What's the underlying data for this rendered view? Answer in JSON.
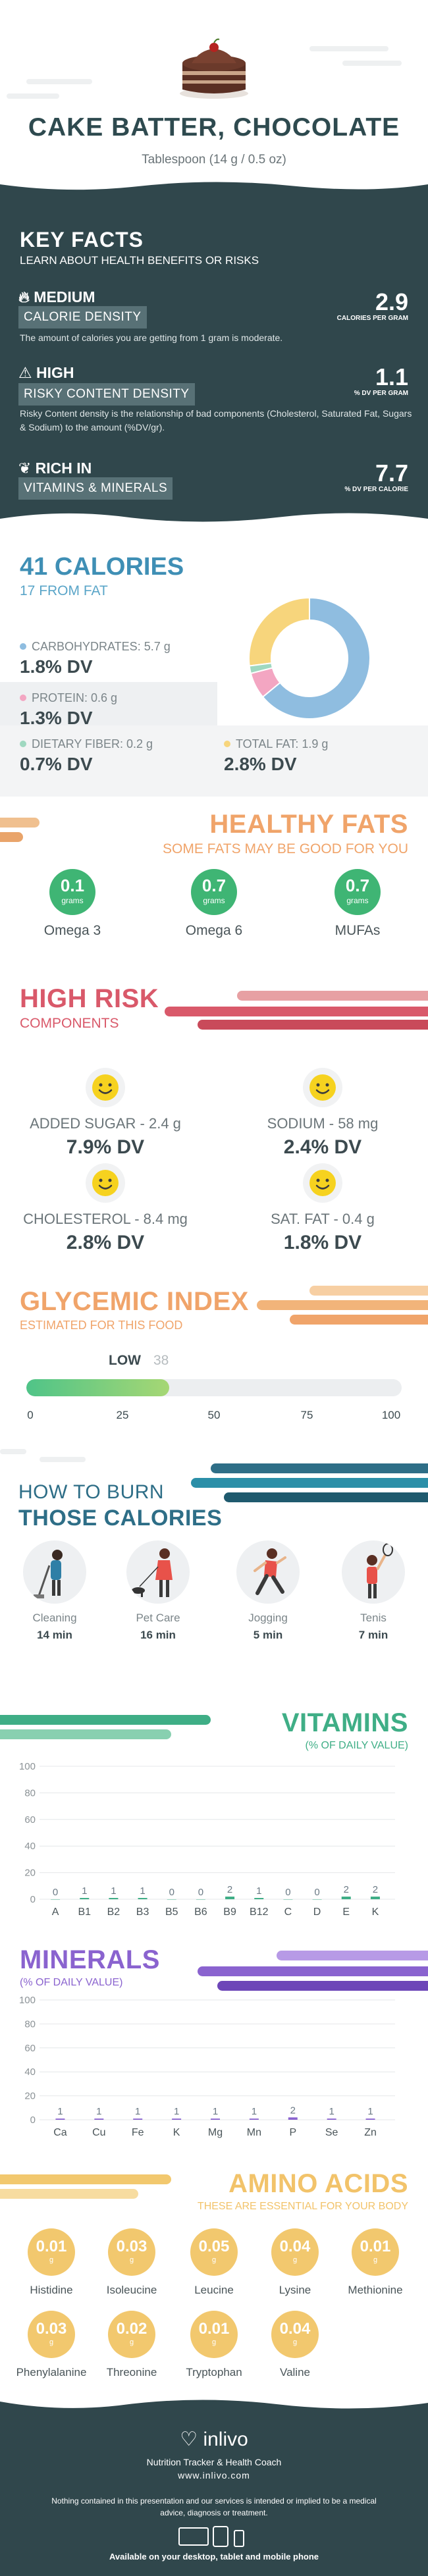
{
  "header": {
    "title": "CAKE BATTER, CHOCOLATE",
    "serving": "Tablespoon (14 g / 0.5 oz)"
  },
  "key_facts": {
    "heading": "KEY FACTS",
    "subheading": "LEARN ABOUT HEALTH BENEFITS OR RISKS",
    "items": [
      {
        "badge": "MEDIUM",
        "label": "CALORIE DENSITY",
        "value": "2.9",
        "unit": "CALORIES PER GRAM",
        "desc": "The amount of calories you are getting from 1 gram is moderate.",
        "icon": "flame-icon"
      },
      {
        "badge": "HIGH",
        "label": "RISKY CONTENT DENSITY",
        "value": "1.1",
        "unit": "% DV PER GRAM",
        "desc": "Risky Content density is the relationship of bad components (Cholesterol, Saturated Fat, Sugars & Sodium) to the amount (%DV/gr).",
        "icon": "warning-icon"
      },
      {
        "badge": "RICH  IN",
        "label": "VITAMINS & MINERALS",
        "value": "7.7",
        "unit": "% DV PER CALORIE",
        "desc": "",
        "icon": "leaf-icon"
      }
    ]
  },
  "calories": {
    "title": "41 CALORIES",
    "from_fat": "17 FROM FAT",
    "nutrients": [
      {
        "label": "CARBOHYDRATES: 5.7 g",
        "dv": "1.8% DV",
        "color": "#8fbde0"
      },
      {
        "label": "PROTEIN: 0.6 g",
        "dv": "1.3% DV",
        "color": "#f3a6c2"
      },
      {
        "label": "DIETARY FIBER: 0.2 g",
        "dv": "0.7% DV",
        "color": "#9fd8c0"
      },
      {
        "label": "TOTAL FAT: 1.9 g",
        "dv": "2.8% DV",
        "color": "#f7d57c"
      }
    ],
    "chart_data": {
      "type": "pie",
      "categories": [
        "Carbohydrates",
        "Protein",
        "Dietary Fiber",
        "Total Fat"
      ],
      "values": [
        64,
        7,
        2,
        27
      ],
      "colors": [
        "#8fbde0",
        "#f3a6c2",
        "#9fd8c0",
        "#f7d57c"
      ]
    }
  },
  "healthy_fats": {
    "title": "HEALTHY FATS",
    "subtitle": "SOME FATS MAY BE GOOD FOR YOU",
    "items": [
      {
        "value": "0.1",
        "unit": "grams",
        "name": "Omega 3"
      },
      {
        "value": "0.7",
        "unit": "grams",
        "name": "Omega 6"
      },
      {
        "value": "0.7",
        "unit": "grams",
        "name": "MUFAs"
      }
    ]
  },
  "high_risk": {
    "title": "HIGH RISK",
    "subtitle": "COMPONENTS",
    "items": [
      {
        "label": "ADDED SUGAR - 2.4 g",
        "dv": "7.9% DV"
      },
      {
        "label": "SODIUM - 58 mg",
        "dv": "2.4% DV"
      },
      {
        "label": "CHOLESTEROL - 8.4 mg",
        "dv": "2.8% DV"
      },
      {
        "label": "SAT. FAT - 0.4 g",
        "dv": "1.8% DV"
      }
    ]
  },
  "glycemic": {
    "title": "GLYCEMIC INDEX",
    "subtitle": "ESTIMATED FOR THIS FOOD",
    "level": "LOW",
    "value": "38",
    "fraction": 0.38,
    "ticks": [
      "0",
      "25",
      "50",
      "75",
      "100"
    ]
  },
  "burn": {
    "title_line1": "HOW TO BURN",
    "title_line2": "THOSE CALORIES",
    "activities": [
      {
        "name": "Cleaning",
        "time": "14 min",
        "icon": "cleaning-icon"
      },
      {
        "name": "Pet Care",
        "time": "16 min",
        "icon": "dog-walking-icon"
      },
      {
        "name": "Jogging",
        "time": "5 min",
        "icon": "jogging-icon"
      },
      {
        "name": "Tenis",
        "time": "7 min",
        "icon": "tennis-icon"
      }
    ]
  },
  "vitamins": {
    "title": "VITAMINS",
    "subtitle": "(% OF DAILY VALUE)",
    "chart_data": {
      "type": "bar",
      "categories": [
        "A",
        "B1",
        "B2",
        "B3",
        "B5",
        "B6",
        "B9",
        "B12",
        "C",
        "D",
        "E",
        "K"
      ],
      "values": [
        0,
        1,
        1,
        1,
        0,
        0,
        2,
        1,
        0,
        0,
        2,
        2
      ],
      "labels": [
        "0",
        "1",
        "1",
        "1",
        "0",
        "0",
        "2",
        "1",
        "0",
        "0",
        "2",
        "2"
      ],
      "yticks": [
        "100",
        "80",
        "60",
        "40",
        "20",
        "0"
      ],
      "ylim": [
        0,
        100
      ],
      "bar_color": "#3fae86"
    }
  },
  "minerals": {
    "title": "MINERALS",
    "subtitle": "(% OF DAILY VALUE)",
    "chart_data": {
      "type": "bar",
      "categories": [
        "Ca",
        "Cu",
        "Fe",
        "K",
        "Mg",
        "Mn",
        "P",
        "Se",
        "Zn"
      ],
      "values": [
        1,
        1,
        1,
        1,
        1,
        1,
        2,
        1,
        1
      ],
      "labels": [
        "1",
        "1",
        "1",
        "1",
        "1",
        "1",
        "2",
        "1",
        "1"
      ],
      "yticks": [
        "100",
        "80",
        "60",
        "40",
        "20",
        "0"
      ],
      "ylim": [
        0,
        100
      ],
      "bar_color": "#8a63cf"
    }
  },
  "amino": {
    "title": "AMINO ACIDS",
    "subtitle": "THESE ARE ESSENTIAL FOR YOUR BODY",
    "unit": "g",
    "items": [
      {
        "value": "0.01",
        "name": "Histidine"
      },
      {
        "value": "0.03",
        "name": "Isoleucine"
      },
      {
        "value": "0.05",
        "name": "Leucine"
      },
      {
        "value": "0.04",
        "name": "Lysine"
      },
      {
        "value": "0.01",
        "name": "Methionine"
      },
      {
        "value": "0.03",
        "name": "Phenylalanine"
      },
      {
        "value": "0.02",
        "name": "Threonine"
      },
      {
        "value": "0.01",
        "name": "Tryptophan"
      },
      {
        "value": "0.04",
        "name": "Valine"
      }
    ]
  },
  "footer": {
    "brand": "inlivo",
    "tagline": "Nutrition Tracker & Health Coach",
    "site": "www.inlivo.com",
    "disclaimer": "Nothing contained in this presentation and our services is intended or implied to be a medical advice, diagnosis or treatment.",
    "available": "Available on your desktop, tablet and mobile phone"
  }
}
